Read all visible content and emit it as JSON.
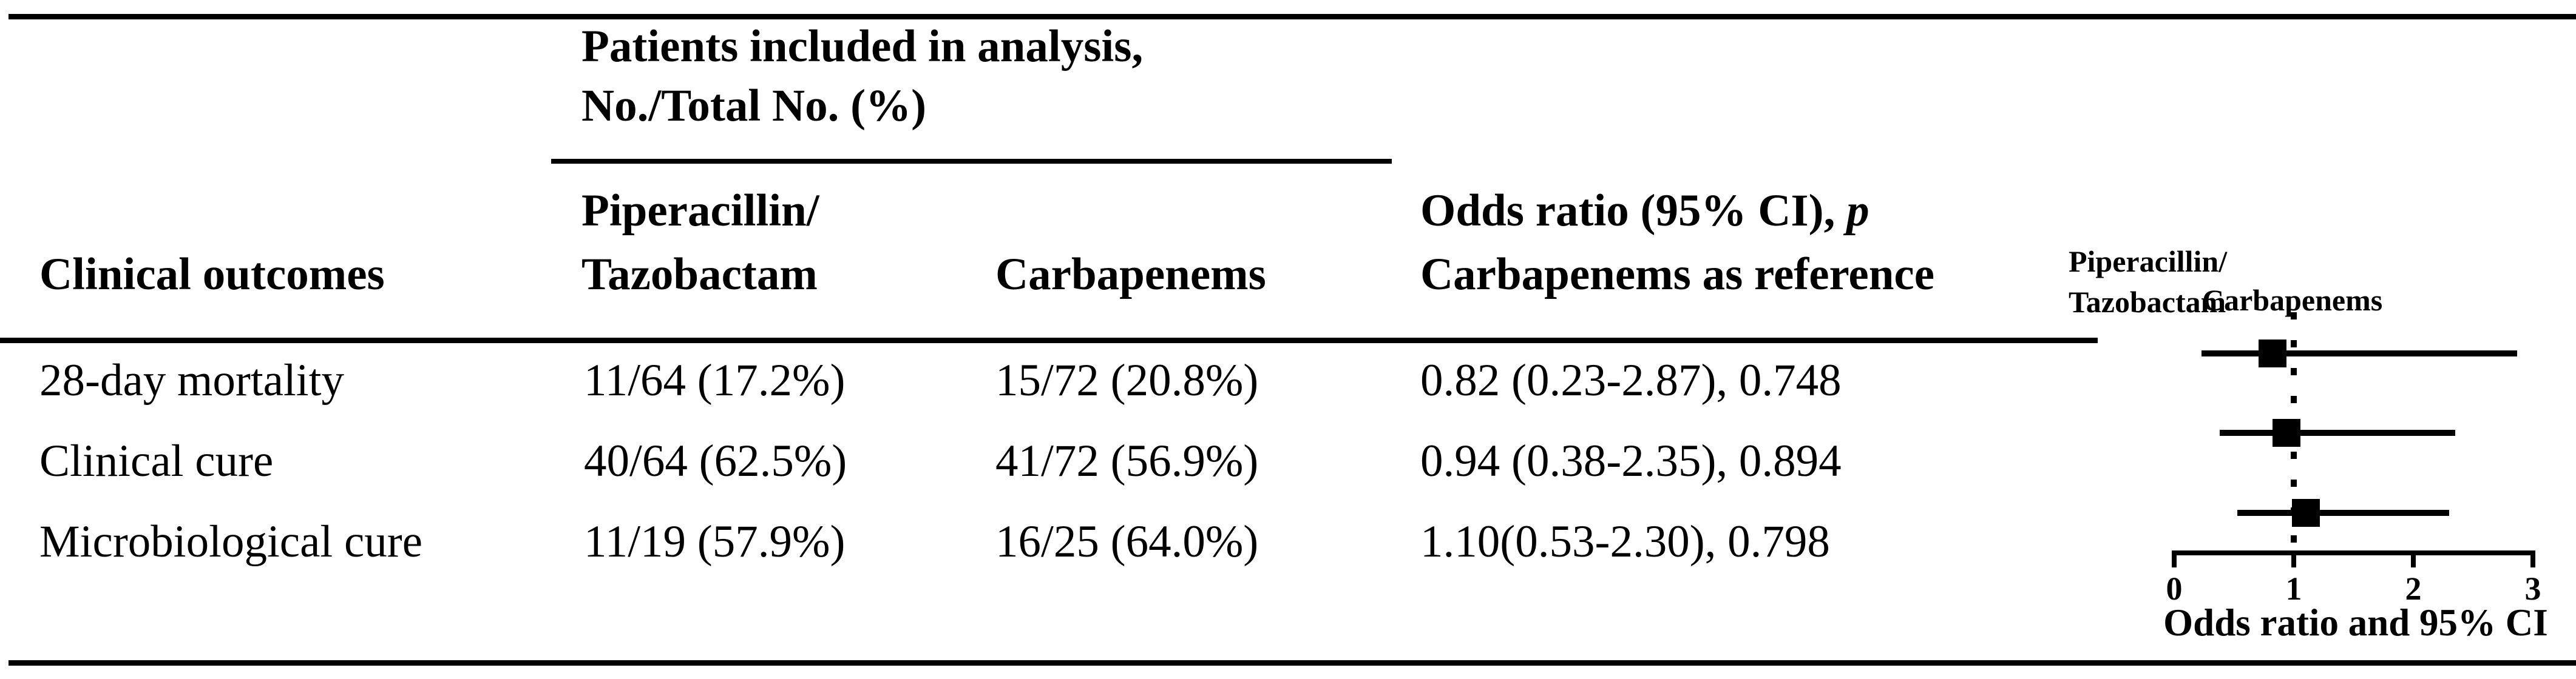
{
  "table": {
    "col1_header": "Clinical outcomes",
    "span_header_line1": "Patients included in analysis,",
    "span_header_line2": "No./Total No. (%)",
    "col2_header_line1": "Piperacillin/",
    "col2_header_line2": "Tazobactam",
    "col3_header": "Carbapenems",
    "col4_header_line1": "Odds ratio (95% CI), ",
    "col4_header_p": "p",
    "col4_header_line2": "Carbapenems as reference",
    "rows": [
      {
        "outcome": "28-day mortality",
        "pip_taz": "11/64 (17.2%)",
        "carbapenems": "15/72 (20.8%)",
        "odds_ratio": "0.82 (0.23-2.87), 0.748"
      },
      {
        "outcome": "Clinical cure",
        "pip_taz": "40/64 (62.5%)",
        "carbapenems": "41/72 (56.9%)",
        "odds_ratio": "0.94 (0.38-2.35), 0.894"
      },
      {
        "outcome": "Microbiological cure",
        "pip_taz": "11/19 (57.9%)",
        "carbapenems": "16/25 (64.0%)",
        "odds_ratio": "1.10(0.53-2.30), 0.798"
      }
    ]
  },
  "chart_data": {
    "type": "scatter",
    "subtype": "forest-plot",
    "left_label_line1": "Piperacillin/",
    "left_label_line2": "Tazobactam",
    "right_label": "Carbapenems",
    "reference_value": 1,
    "rows": [
      {
        "label": "28-day mortality",
        "odds_ratio": 0.82,
        "ci_low": 0.23,
        "ci_high": 2.87,
        "p": 0.748
      },
      {
        "label": "Clinical cure",
        "odds_ratio": 0.94,
        "ci_low": 0.38,
        "ci_high": 2.35,
        "p": 0.894
      },
      {
        "label": "Microbiological cure",
        "odds_ratio": 1.1,
        "ci_low": 0.53,
        "ci_high": 2.3,
        "p": 0.798
      }
    ],
    "xlim": [
      0,
      3
    ],
    "xticks": [
      "0",
      "1",
      "2",
      "3"
    ],
    "xlabel": "Odds ratio and 95% CI",
    "marker_color": "#000000",
    "legend_position": "top",
    "grid": false
  }
}
